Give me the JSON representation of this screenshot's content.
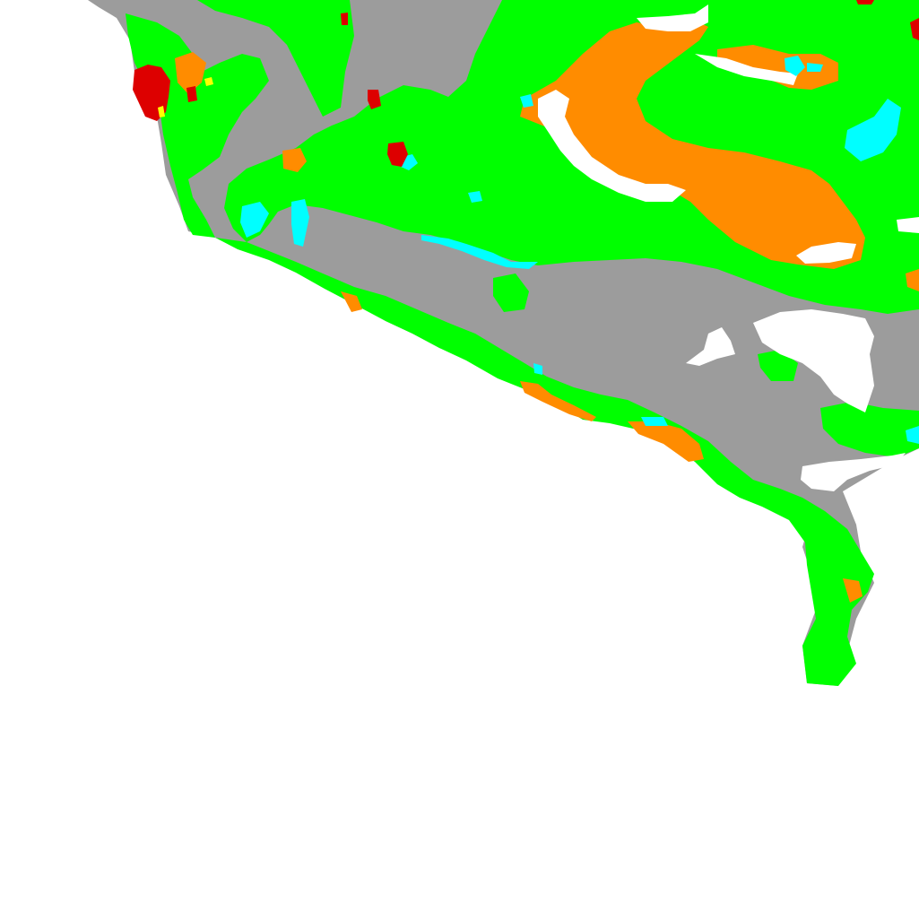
{
  "map": {
    "background_color": "#ffffff",
    "palette": {
      "land_gray": "#9c9c9c",
      "green": "#00ff00",
      "orange": "#ff8c00",
      "red": "#dd0000",
      "cyan": "#00ffff",
      "yellow": "#ffff00",
      "white": "#ffffff"
    },
    "classes": [
      "land_gray",
      "green",
      "orange",
      "red",
      "cyan",
      "yellow",
      "white"
    ]
  }
}
